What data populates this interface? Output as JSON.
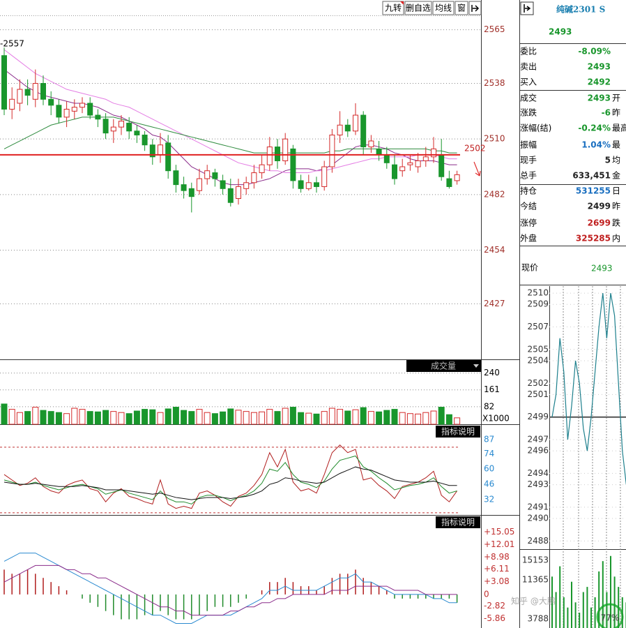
{
  "toolbar": {
    "buttons": [
      "九转",
      "删自选",
      "均线",
      "窗"
    ]
  },
  "chart_data": [
    {
      "type": "candlestick",
      "annotation": "-2557",
      "reference_line": 2502,
      "up_color": "#d42a2a",
      "down_color": "#19962c",
      "open": [
        2552,
        2525,
        2528,
        2535,
        2530,
        2538,
        2530,
        2527,
        2521,
        2524,
        2526,
        2528,
        2522,
        2520,
        2514,
        2516,
        2518,
        2514,
        2512,
        2507,
        2502,
        2508,
        2494,
        2487,
        2485,
        2484,
        2490,
        2493,
        2489,
        2485,
        2480,
        2485,
        2488,
        2493,
        2497,
        2506,
        2499,
        2505,
        2489,
        2485,
        2488,
        2486,
        2496,
        2512,
        2517,
        2514,
        2522,
        2506,
        2505,
        2502,
        2497,
        2494,
        2497,
        2496,
        2499,
        2501,
        2502,
        2490,
        2489
      ],
      "high": [
        2556,
        2536,
        2540,
        2540,
        2545,
        2542,
        2534,
        2530,
        2529,
        2530,
        2531,
        2531,
        2525,
        2523,
        2520,
        2522,
        2521,
        2517,
        2514,
        2510,
        2513,
        2512,
        2497,
        2491,
        2488,
        2495,
        2497,
        2495,
        2492,
        2490,
        2490,
        2491,
        2497,
        2502,
        2511,
        2510,
        2513,
        2507,
        2492,
        2492,
        2491,
        2499,
        2515,
        2524,
        2520,
        2528,
        2524,
        2512,
        2509,
        2506,
        2502,
        2500,
        2502,
        2503,
        2506,
        2511,
        2510,
        2494,
        2494
      ],
      "low": [
        2522,
        2520,
        2524,
        2527,
        2526,
        2527,
        2522,
        2518,
        2516,
        2520,
        2523,
        2520,
        2516,
        2510,
        2508,
        2512,
        2510,
        2508,
        2504,
        2497,
        2498,
        2490,
        2483,
        2480,
        2473,
        2482,
        2487,
        2486,
        2482,
        2476,
        2477,
        2482,
        2485,
        2490,
        2494,
        2495,
        2497,
        2485,
        2483,
        2484,
        2483,
        2484,
        2493,
        2508,
        2511,
        2512,
        2502,
        2503,
        2499,
        2495,
        2487,
        2491,
        2494,
        2493,
        2496,
        2498,
        2489,
        2485,
        2487
      ],
      "close": [
        2525,
        2530,
        2535,
        2532,
        2538,
        2530,
        2527,
        2521,
        2525,
        2526,
        2528,
        2522,
        2520,
        2513,
        2516,
        2519,
        2514,
        2512,
        2507,
        2501,
        2507,
        2494,
        2487,
        2484,
        2481,
        2490,
        2494,
        2490,
        2485,
        2478,
        2486,
        2488,
        2493,
        2497,
        2506,
        2499,
        2510,
        2489,
        2485,
        2488,
        2486,
        2496,
        2512,
        2517,
        2514,
        2522,
        2506,
        2509,
        2502,
        2498,
        2490,
        2496,
        2498,
        2499,
        2501,
        2505,
        2491,
        2486,
        2492
      ],
      "series": [
        {
          "color": "#8a2b8a",
          "values": [
            2545,
            2542,
            2539,
            2536,
            2534,
            2532,
            2531,
            2530,
            2529,
            2528,
            2528,
            2527,
            2526,
            2524,
            2522,
            2521,
            2519,
            2517,
            2515,
            2512,
            2511,
            2508,
            2504,
            2500,
            2496,
            2494,
            2492,
            2490,
            2488,
            2487,
            2487,
            2487,
            2488,
            2489,
            2490,
            2492,
            2494,
            2495,
            2495,
            2495,
            2494,
            2495,
            2497,
            2500,
            2503,
            2506,
            2507,
            2507,
            2506,
            2505,
            2503,
            2502,
            2500,
            2499,
            2499,
            2499,
            2498,
            2497,
            2497
          ]
        },
        {
          "color": "#e47de4",
          "values": [
            2555,
            2552,
            2549,
            2546,
            2543,
            2541,
            2539,
            2537,
            2535,
            2534,
            2533,
            2532,
            2531,
            2530,
            2528,
            2527,
            2526,
            2524,
            2522,
            2520,
            2518,
            2516,
            2514,
            2512,
            2510,
            2508,
            2506,
            2504,
            2502,
            2500,
            2498,
            2497,
            2496,
            2495,
            2494,
            2494,
            2493,
            2493,
            2493,
            2493,
            2494,
            2494,
            2495,
            2496,
            2497,
            2498,
            2499,
            2500,
            2500,
            2501,
            2501,
            2501,
            2501,
            2502,
            2502,
            2502,
            2501,
            2500,
            2500
          ]
        },
        {
          "color": "#2e8b3e",
          "values": [
            2505,
            2507,
            2509,
            2511,
            2513,
            2515,
            2517,
            2518,
            2519,
            2520,
            2521,
            2521,
            2521,
            2521,
            2521,
            2520,
            2519,
            2518,
            2517,
            2516,
            2515,
            2514,
            2513,
            2512,
            2511,
            2510,
            2509,
            2508,
            2507,
            2506,
            2505,
            2504,
            2503,
            2503,
            2503,
            2503,
            2503,
            2503,
            2503,
            2503,
            2503,
            2503,
            2504,
            2504,
            2505,
            2505,
            2505,
            2505,
            2505,
            2505,
            2505,
            2505,
            2505,
            2505,
            2505,
            2504,
            2504,
            2503,
            2503
          ]
        }
      ],
      "ylim": [
        2399,
        2580
      ],
      "yticks": [
        2427,
        2454,
        2482,
        2510,
        2538,
        2565
      ],
      "grid": true
    },
    {
      "type": "bar",
      "title": "成交量",
      "unit": "X1000",
      "values": [
        95,
        70,
        55,
        60,
        80,
        65,
        60,
        55,
        50,
        75,
        70,
        60,
        58,
        65,
        60,
        55,
        50,
        62,
        70,
        68,
        55,
        72,
        80,
        65,
        60,
        70,
        55,
        50,
        58,
        72,
        66,
        60,
        55,
        58,
        70,
        60,
        75,
        80,
        55,
        52,
        48,
        60,
        75,
        70,
        62,
        68,
        78,
        60,
        58,
        65,
        70,
        55,
        50,
        48,
        55,
        62,
        80,
        45,
        30
      ],
      "ylim": [
        0,
        304
      ],
      "yticks": [
        82,
        161,
        240
      ]
    },
    {
      "type": "line",
      "title": "指标说明",
      "reference_lines": [
        80,
        20
      ],
      "series": [
        {
          "color": "#b01c1c",
          "values": [
            55,
            50,
            45,
            47,
            52,
            44,
            40,
            38,
            45,
            48,
            50,
            42,
            40,
            30,
            38,
            42,
            35,
            33,
            30,
            28,
            50,
            28,
            24,
            26,
            24,
            38,
            40,
            36,
            30,
            26,
            35,
            38,
            45,
            55,
            75,
            62,
            78,
            48,
            40,
            42,
            38,
            55,
            75,
            82,
            75,
            78,
            50,
            52,
            45,
            40,
            33,
            44,
            46,
            48,
            52,
            58,
            36,
            30,
            40
          ]
        },
        {
          "color": "#1f8a2a",
          "values": [
            50,
            48,
            46,
            46,
            48,
            45,
            43,
            41,
            43,
            45,
            46,
            44,
            42,
            37,
            39,
            41,
            38,
            36,
            34,
            32,
            40,
            33,
            30,
            30,
            28,
            34,
            36,
            36,
            34,
            31,
            34,
            36,
            40,
            47,
            60,
            58,
            66,
            55,
            48,
            46,
            43,
            49,
            60,
            68,
            70,
            72,
            62,
            58,
            52,
            47,
            41,
            43,
            45,
            46,
            48,
            52,
            44,
            38,
            40
          ]
        },
        {
          "color": "#111111",
          "values": [
            48,
            47,
            46,
            46,
            47,
            46,
            45,
            44,
            44,
            44,
            45,
            44,
            43,
            41,
            41,
            41,
            40,
            39,
            38,
            37,
            38,
            36,
            34,
            33,
            32,
            33,
            34,
            34,
            34,
            33,
            34,
            35,
            37,
            40,
            46,
            48,
            52,
            51,
            49,
            48,
            47,
            48,
            52,
            56,
            59,
            62,
            60,
            59,
            56,
            53,
            50,
            49,
            48,
            48,
            48,
            49,
            47,
            45,
            45
          ]
        }
      ],
      "ylim": [
        18,
        101
      ],
      "yticks": [
        32,
        46,
        60,
        74,
        87
      ]
    },
    {
      "type": "macd",
      "title": "指标说明",
      "up_color": "#b01c1c",
      "down_color": "#1f8a2a",
      "histogram": [
        6,
        5,
        5,
        6,
        5,
        4,
        3,
        2,
        1,
        0,
        -1,
        -2,
        -3,
        -4,
        -5,
        -6,
        -6,
        -6,
        -5,
        -5,
        -4,
        -5,
        -6,
        -6,
        -6,
        -5,
        -4,
        -3,
        -3,
        -3,
        -2,
        -1,
        0,
        1,
        3,
        3,
        4,
        3,
        2,
        2,
        1,
        2,
        4,
        5,
        5,
        6,
        4,
        3,
        2,
        1,
        -1,
        -1,
        -1,
        -1,
        -1,
        -1,
        -1,
        -1,
        -2
      ],
      "series": [
        {
          "color": "#2a8ad0",
          "values": [
            8,
            9,
            10,
            10,
            10,
            9,
            8,
            7,
            6,
            5,
            4,
            3,
            2,
            1,
            0,
            -1,
            -2,
            -3,
            -4,
            -5,
            -5,
            -6,
            -7,
            -7,
            -7,
            -6,
            -5,
            -5,
            -5,
            -5,
            -4,
            -3,
            -2,
            -1,
            1,
            1,
            2,
            1,
            1,
            1,
            1,
            2,
            3,
            4,
            4,
            5,
            3,
            3,
            2,
            1,
            0,
            0,
            0,
            0,
            0,
            -1,
            -1,
            -2,
            -2
          ]
        },
        {
          "color": "#8a2b8a",
          "values": [
            3,
            4,
            5,
            6,
            7,
            7,
            7,
            7,
            6,
            6,
            5,
            5,
            4,
            4,
            3,
            2,
            1,
            0,
            -1,
            -2,
            -3,
            -3,
            -4,
            -4,
            -5,
            -5,
            -5,
            -5,
            -5,
            -4,
            -4,
            -3,
            -3,
            -2,
            -2,
            -1,
            -1,
            0,
            0,
            0,
            0,
            0,
            1,
            1,
            1,
            2,
            2,
            2,
            2,
            2,
            1,
            1,
            1,
            1,
            0,
            0,
            0,
            0,
            0
          ]
        }
      ],
      "ylim": [
        -8.1,
        19.2
      ],
      "yticks": [
        {
          "value": -5.86,
          "label": "-5.86"
        },
        {
          "value": -2.82,
          "label": "-2.82"
        },
        0,
        {
          "value": 3.08,
          "label": "+3.08"
        },
        {
          "value": 6.11,
          "label": "+6.11"
        },
        {
          "value": 8.98,
          "label": "+8.98"
        },
        {
          "value": 12.01,
          "label": "+12.01"
        },
        {
          "value": 15.05,
          "label": "+15.05"
        }
      ]
    }
  ],
  "quote": {
    "name": "纯碱2301 S",
    "price": "2493",
    "rows": [
      {
        "label": "委比",
        "value": "-8.09%",
        "color": "#19962c"
      },
      {
        "label": "卖出",
        "value": "2493",
        "color": "#19962c"
      },
      {
        "label": "买入",
        "value": "2492",
        "color": "#19962c"
      },
      {
        "label": "成交",
        "value": "2493",
        "color": "#19962c",
        "side": "开"
      },
      {
        "label": "涨跌",
        "value": "-6",
        "color": "#19962c",
        "side": "昨"
      },
      {
        "label": "涨幅(结)",
        "value": "-0.24%",
        "color": "#19962c",
        "side": "最高"
      },
      {
        "label": "振幅",
        "value": "1.04%",
        "color": "#1a6fc0",
        "side": "最"
      },
      {
        "label": "现手",
        "value": "5",
        "color": "#222222",
        "side": "均"
      },
      {
        "label": "总手",
        "value": "633,451",
        "color": "#222222",
        "side": "金"
      },
      {
        "label": "持仓",
        "value": "531255",
        "color": "#1a6fc0",
        "side": "日"
      },
      {
        "label": "今结",
        "value": "2499",
        "color": "#222222",
        "side": "昨"
      },
      {
        "label": "涨停",
        "value": "2699",
        "color": "#c02020",
        "side": "跌"
      },
      {
        "label": "外盘",
        "value": "325285",
        "color": "#c02020",
        "side": "内"
      }
    ],
    "current_label": "现价",
    "current_value": "2493"
  },
  "mini_chart": {
    "reference_line": 2499,
    "color": "#1c7f8c",
    "volume_color": "#19962c",
    "values": [
      2499,
      2501,
      2506,
      2503,
      2497,
      2500,
      2504,
      2502,
      2498,
      2496,
      2499,
      2503,
      2507,
      2510,
      2506,
      2510,
      2508,
      2502,
      2496,
      2493
    ],
    "volume": [
      12000,
      9000,
      14000,
      8000,
      6000,
      11000,
      7000,
      5000,
      9000,
      10000,
      6000,
      8000,
      13000,
      15000,
      9000,
      16000,
      12000,
      10000,
      8000,
      7000
    ],
    "ylim": [
      2487.4,
      2510.5
    ],
    "yticks": [
      2488,
      2490,
      2491,
      2493,
      2494,
      2496,
      2497,
      2499,
      2501,
      2502,
      2504,
      2505,
      2507,
      2509,
      2510
    ],
    "volume_ylim": [
      2030,
      16915
    ],
    "volume_yticks": [
      3788,
      11365,
      15153
    ]
  },
  "watermark": "知乎 @大鹏",
  "zoom": "77%"
}
